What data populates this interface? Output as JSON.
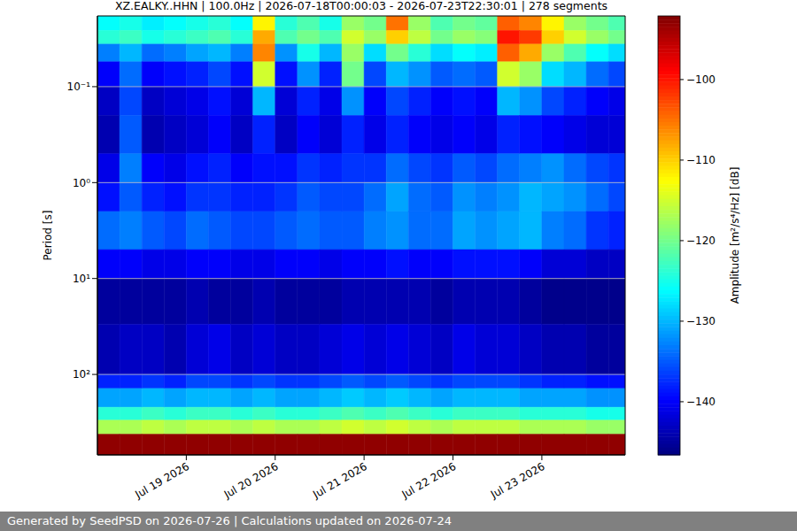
{
  "chart_data": {
    "type": "heatmap",
    "title": "XZ.EALKY..HHN | 100.0Hz | 2026-07-18T00:00:03 - 2026-07-23T22:30:01 | 278 segments",
    "y_label": "Period [s]",
    "footer": "Generated by SeedPSD on 2026-07-26 | Calculations updated on 2026-07-24",
    "log": "y",
    "grid": true,
    "xlim": [
      "2026-07-18T00:00:00",
      "2026-07-23T22:30:00"
    ],
    "xticks": [
      {
        "value": "2026-07-19T00:00:00",
        "label": "Jul 19 2026"
      },
      {
        "value": "2026-07-20T00:00:00",
        "label": "Jul 20 2026"
      },
      {
        "value": "2026-07-21T00:00:00",
        "label": "Jul 21 2026"
      },
      {
        "value": "2026-07-22T00:00:00",
        "label": "Jul 22 2026"
      },
      {
        "value": "2026-07-23T00:00:00",
        "label": "Jul 23 2026"
      }
    ],
    "ylim": [
      0.0183,
      690
    ],
    "yticks": [
      {
        "value": 0.1,
        "label": "10⁻¹"
      },
      {
        "value": 1,
        "label": "10⁰"
      },
      {
        "value": 10,
        "label": "10¹"
      },
      {
        "value": 100,
        "label": "10²"
      }
    ],
    "time_edges": [
      "2026-07-18T00:00:00",
      "2026-07-18T06:00:00",
      "2026-07-18T12:00:00",
      "2026-07-18T18:00:00",
      "2026-07-19T00:00:00",
      "2026-07-19T06:00:00",
      "2026-07-19T12:00:00",
      "2026-07-19T18:00:00",
      "2026-07-20T00:00:00",
      "2026-07-20T06:00:00",
      "2026-07-20T12:00:00",
      "2026-07-20T18:00:00",
      "2026-07-21T00:00:00",
      "2026-07-21T06:00:00",
      "2026-07-21T12:00:00",
      "2026-07-21T18:00:00",
      "2026-07-22T00:00:00",
      "2026-07-22T06:00:00",
      "2026-07-22T12:00:00",
      "2026-07-22T18:00:00",
      "2026-07-23T00:00:00",
      "2026-07-23T06:00:00",
      "2026-07-23T12:00:00",
      "2026-07-23T18:00:00",
      "2026-07-23T22:30:00"
    ],
    "period_edges": [
      0.0183,
      0.026,
      0.036,
      0.055,
      0.1,
      0.2,
      0.5,
      1,
      2,
      5,
      10,
      30,
      100,
      140,
      220,
      300,
      420,
      690
    ],
    "cells": [
      [
        -126,
        -125,
        -127,
        -126,
        -125,
        -124,
        -126,
        -112,
        -124,
        -122,
        -125,
        -118,
        -120,
        -105,
        -118,
        -122,
        -120,
        -121,
        -104,
        -106,
        -112,
        -118,
        -120,
        -122
      ],
      [
        -124,
        -123,
        -125,
        -124,
        -123,
        -122,
        -124,
        -108,
        -122,
        -120,
        -122,
        -115,
        -118,
        -110,
        -116,
        -120,
        -118,
        -119,
        -100,
        -102,
        -110,
        -115,
        -118,
        -120
      ],
      [
        -133,
        -130,
        -134,
        -133,
        -131,
        -130,
        -133,
        -106,
        -132,
        -125,
        -130,
        -118,
        -128,
        -120,
        -124,
        -128,
        -126,
        -127,
        -104,
        -108,
        -118,
        -122,
        -126,
        -128
      ],
      [
        -140,
        -134,
        -140,
        -139,
        -138,
        -136,
        -139,
        -115,
        -139,
        -132,
        -138,
        -120,
        -136,
        -130,
        -132,
        -135,
        -134,
        -135,
        -115,
        -118,
        -128,
        -130,
        -134,
        -136
      ],
      [
        -143,
        -136,
        -143,
        -142,
        -141,
        -139,
        -142,
        -130,
        -142,
        -138,
        -141,
        -132,
        -140,
        -136,
        -138,
        -140,
        -139,
        -140,
        -130,
        -132,
        -136,
        -138,
        -140,
        -141
      ],
      [
        -144,
        -135,
        -144,
        -143,
        -142,
        -140,
        -143,
        -138,
        -143,
        -140,
        -142,
        -138,
        -141,
        -138,
        -140,
        -141,
        -140,
        -141,
        -138,
        -139,
        -140,
        -141,
        -142,
        -142
      ],
      [
        -141,
        -133,
        -140,
        -141,
        -139,
        -138,
        -140,
        -139,
        -139,
        -137,
        -138,
        -137,
        -137,
        -134,
        -136,
        -137,
        -135,
        -136,
        -134,
        -133,
        -132,
        -134,
        -136,
        -137
      ],
      [
        -139,
        -135,
        -138,
        -139,
        -137,
        -137,
        -138,
        -138,
        -137,
        -135,
        -136,
        -136,
        -134,
        -131,
        -134,
        -135,
        -132,
        -133,
        -132,
        -130,
        -131,
        -132,
        -134,
        -136
      ],
      [
        -134,
        -133,
        -135,
        -136,
        -134,
        -135,
        -136,
        -136,
        -135,
        -134,
        -135,
        -135,
        -133,
        -132,
        -134,
        -134,
        -131,
        -132,
        -131,
        -130,
        -133,
        -134,
        -137,
        -138
      ],
      [
        -140,
        -140,
        -141,
        -141,
        -140,
        -140,
        -141,
        -141,
        -140,
        -140,
        -141,
        -140,
        -140,
        -139,
        -140,
        -140,
        -139,
        -139,
        -139,
        -140,
        -142,
        -142,
        -143,
        -143
      ],
      [
        -145,
        -145,
        -145,
        -145,
        -144,
        -145,
        -145,
        -144,
        -145,
        -145,
        -145,
        -144,
        -144,
        -144,
        -144,
        -145,
        -144,
        -144,
        -144,
        -145,
        -146,
        -146,
        -146,
        -146
      ],
      [
        -144,
        -143,
        -143,
        -144,
        -142,
        -141,
        -143,
        -142,
        -143,
        -143,
        -142,
        -141,
        -142,
        -141,
        -142,
        -143,
        -141,
        -142,
        -142,
        -143,
        -144,
        -144,
        -145,
        -145
      ],
      [
        -138,
        -138,
        -137,
        -138,
        -136,
        -136,
        -137,
        -136,
        -137,
        -137,
        -136,
        -135,
        -136,
        -135,
        -136,
        -137,
        -136,
        -136,
        -136,
        -137,
        -138,
        -138,
        -139,
        -139
      ],
      [
        -131,
        -131,
        -130,
        -131,
        -130,
        -130,
        -131,
        -130,
        -131,
        -131,
        -130,
        -129,
        -130,
        -129,
        -130,
        -131,
        -130,
        -130,
        -130,
        -131,
        -131,
        -131,
        -132,
        -132
      ],
      [
        -124,
        -124,
        -123,
        -124,
        -123,
        -123,
        -124,
        -123,
        -124,
        -124,
        -123,
        -122,
        -123,
        -122,
        -123,
        -124,
        -123,
        -123,
        -123,
        -124,
        -124,
        -124,
        -125,
        -125
      ],
      [
        -117,
        -117,
        -116,
        -117,
        -116,
        -116,
        -117,
        -116,
        -117,
        -117,
        -116,
        -115,
        -116,
        -115,
        -116,
        -117,
        -116,
        -116,
        -116,
        -117,
        -117,
        -117,
        -118,
        -118
      ],
      [
        -93,
        -93,
        -93,
        -93,
        -93,
        -93,
        -93,
        -93,
        -93,
        -93,
        -93,
        -93,
        -93,
        -93,
        -93,
        -93,
        -93,
        -93,
        -93,
        -93,
        -93,
        -93,
        -93,
        -93
      ]
    ],
    "colorbar": {
      "label": "Amplitude [m²/s⁴/Hz] [dB]",
      "zlim": [
        -146.6,
        -92.1
      ],
      "zticks": [
        {
          "value": -100,
          "label": "−100"
        },
        {
          "value": -110,
          "label": "−110"
        },
        {
          "value": -120,
          "label": "−120"
        },
        {
          "value": -130,
          "label": "−130"
        },
        {
          "value": -140,
          "label": "−140"
        }
      ]
    }
  }
}
